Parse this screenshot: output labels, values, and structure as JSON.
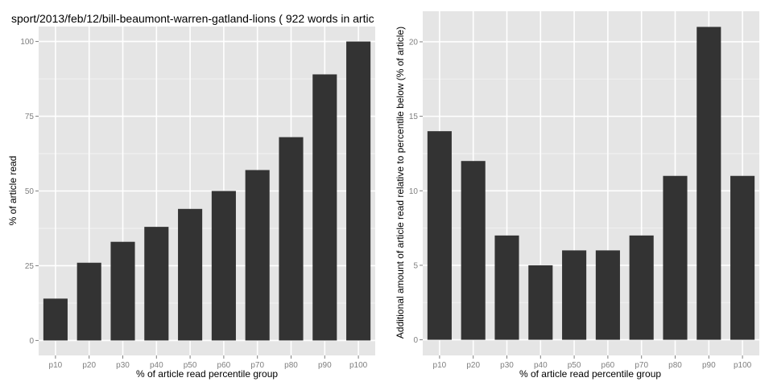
{
  "colors": {
    "panel_bg": "#e5e5e5",
    "grid_major": "#ffffff",
    "grid_minor": "#f2f2f2",
    "bar": "#333333",
    "tick_text": "#7f7f7f",
    "tick_mark": "#7f7f7f"
  },
  "chart_data": [
    {
      "type": "bar",
      "title": "sport/2013/feb/12/bill-beaumont-warren-gatland-lions ( 922 words in artic",
      "xlabel": "% of article read percentile group",
      "ylabel": "% of article read",
      "categories": [
        "p10",
        "p20",
        "p30",
        "p40",
        "p50",
        "p60",
        "p70",
        "p80",
        "p90",
        "p100"
      ],
      "values": [
        14,
        26,
        33,
        38,
        44,
        50,
        57,
        68,
        89,
        100
      ],
      "ylim": [
        -5,
        105
      ],
      "yticks": [
        0,
        25,
        50,
        75,
        100
      ],
      "ytick_labels": [
        "0",
        "25",
        "50",
        "75",
        "100"
      ],
      "grid": true,
      "legend": "none"
    },
    {
      "type": "bar",
      "title": "",
      "xlabel": "% of article read percentile group",
      "ylabel": "Additional amount of article read relative to percentile below (% of article)",
      "categories": [
        "p10",
        "p20",
        "p30",
        "p40",
        "p50",
        "p60",
        "p70",
        "p80",
        "p90",
        "p100"
      ],
      "values": [
        14,
        12,
        7,
        5,
        6,
        6,
        7,
        11,
        21,
        11
      ],
      "ylim": [
        -1.05,
        22.05
      ],
      "yticks": [
        0,
        5,
        10,
        15,
        20
      ],
      "ytick_labels": [
        "0",
        "5",
        "10",
        "15",
        "20"
      ],
      "grid": true,
      "legend": "none"
    }
  ]
}
